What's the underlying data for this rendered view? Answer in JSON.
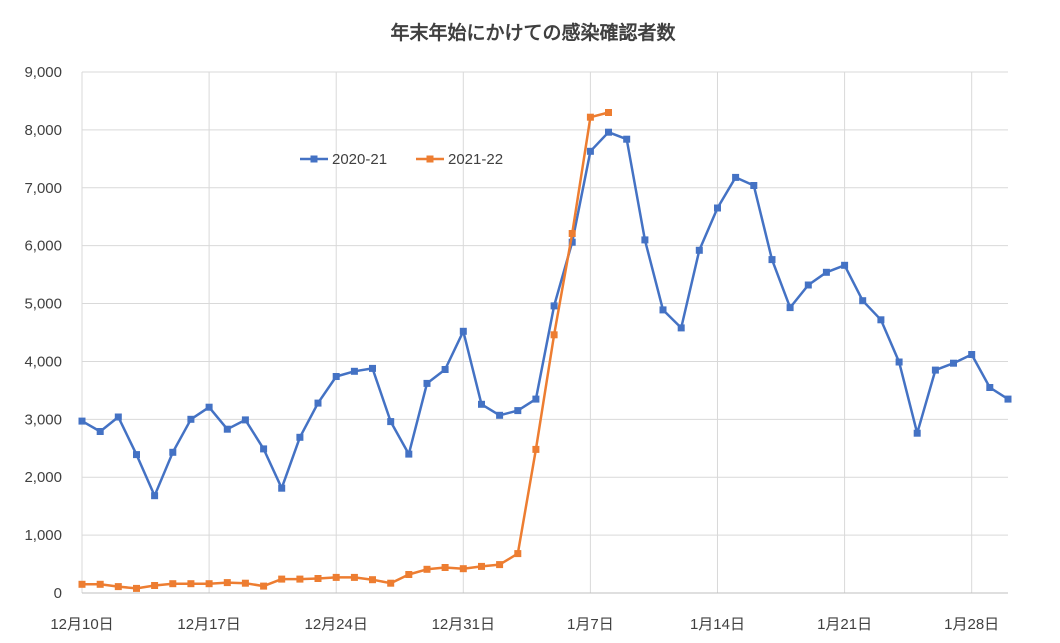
{
  "chart_data": {
    "type": "line",
    "title": "年末年始にかけての感染確認者数",
    "xlabel": "",
    "ylabel": "",
    "ylim": [
      0,
      9000
    ],
    "yticks": [
      0,
      1000,
      2000,
      3000,
      4000,
      5000,
      6000,
      7000,
      8000,
      9000
    ],
    "ytick_labels": [
      "0",
      "1,000",
      "2,000",
      "3,000",
      "4,000",
      "5,000",
      "6,000",
      "7,000",
      "8,000",
      "9,000"
    ],
    "x_start": "12月10日",
    "x_end": "1月30日",
    "xticks": [
      "12月10日",
      "12月17日",
      "12月24日",
      "12月31日",
      "1月7日",
      "1月14日",
      "1月21日",
      "1月28日"
    ],
    "grid": "vertical and horizontal major gridlines",
    "legend": "top-left",
    "series": [
      {
        "name": "2020-21",
        "color": "#4472C4",
        "x": [
          "12月10日",
          "12月11日",
          "12月12日",
          "12月13日",
          "12月14日",
          "12月15日",
          "12月16日",
          "12月17日",
          "12月18日",
          "12月19日",
          "12月20日",
          "12月21日",
          "12月22日",
          "12月23日",
          "12月24日",
          "12月25日",
          "12月26日",
          "12月27日",
          "12月28日",
          "12月29日",
          "12月30日",
          "12月31日",
          "1月1日",
          "1月2日",
          "1月3日",
          "1月4日",
          "1月5日",
          "1月6日",
          "1月7日",
          "1月8日",
          "1月9日",
          "1月10日",
          "1月11日",
          "1月12日",
          "1月13日",
          "1月14日",
          "1月15日",
          "1月16日",
          "1月17日",
          "1月18日",
          "1月19日",
          "1月20日",
          "1月21日",
          "1月22日",
          "1月23日",
          "1月24日",
          "1月25日",
          "1月26日",
          "1月27日",
          "1月28日",
          "1月29日",
          "1月30日"
        ],
        "values": [
          2970,
          2790,
          3040,
          2390,
          1680,
          2430,
          3000,
          3210,
          2830,
          2990,
          2490,
          1810,
          2690,
          3280,
          3740,
          3830,
          3880,
          2960,
          2400,
          3620,
          3860,
          4520,
          3260,
          3070,
          3150,
          3350,
          4960,
          6060,
          7630,
          7960,
          7840,
          6100,
          4890,
          4580,
          5920,
          6650,
          7180,
          7040,
          5760,
          4930,
          5320,
          5540,
          5660,
          5050,
          4720,
          3990,
          2760,
          3850,
          3970,
          4120,
          3550,
          3350
        ]
      },
      {
        "name": "2021-22",
        "color": "#ED7D31",
        "x": [
          "12月10日",
          "12月11日",
          "12月12日",
          "12月13日",
          "12月14日",
          "12月15日",
          "12月16日",
          "12月17日",
          "12月18日",
          "12月19日",
          "12月20日",
          "12月21日",
          "12月22日",
          "12月23日",
          "12月24日",
          "12月25日",
          "12月26日",
          "12月27日",
          "12月28日",
          "12月29日",
          "12月30日",
          "12月31日",
          "1月1日",
          "1月2日",
          "1月3日",
          "1月4日",
          "1月5日",
          "1月6日",
          "1月7日",
          "1月8日"
        ],
        "values": [
          150,
          150,
          110,
          80,
          130,
          160,
          160,
          160,
          180,
          170,
          120,
          240,
          240,
          250,
          270,
          270,
          230,
          170,
          320,
          410,
          440,
          420,
          460,
          490,
          680,
          2480,
          4460,
          6210,
          8220,
          8300
        ]
      }
    ]
  }
}
